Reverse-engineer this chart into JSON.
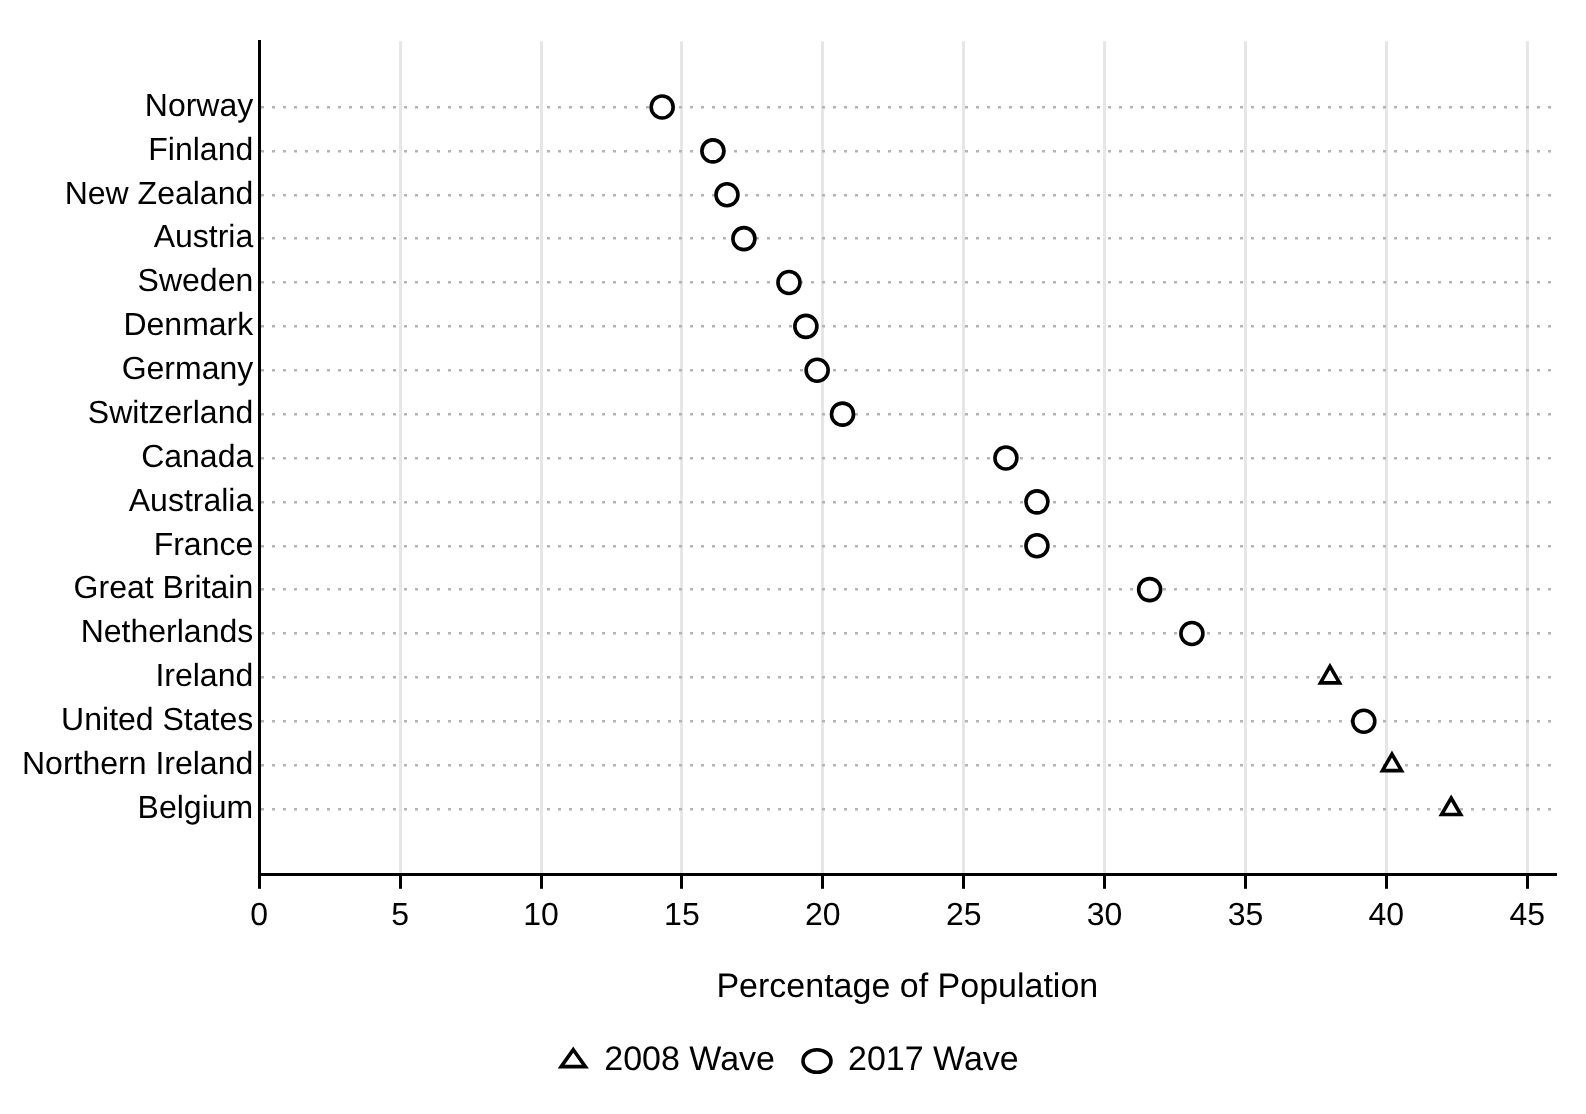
{
  "chart_data": {
    "type": "scatter",
    "orientation": "horizontal",
    "xlabel": "Percentage of Population",
    "categories": [
      "Norway",
      "Finland",
      "New Zealand",
      "Austria",
      "Sweden",
      "Denmark",
      "Germany",
      "Switzerland",
      "Canada",
      "Australia",
      "France",
      "Great Britain",
      "Netherlands",
      "Ireland",
      "United States",
      "Northern Ireland",
      "Belgium"
    ],
    "series": [
      {
        "name": "2008 Wave",
        "color": "#000000",
        "marker": "triangle",
        "values": [
          null,
          null,
          null,
          null,
          null,
          null,
          null,
          null,
          null,
          null,
          null,
          null,
          null,
          38.0,
          null,
          40.2,
          42.3
        ]
      },
      {
        "name": "2017 Wave",
        "color": "#000000",
        "marker": "circle",
        "values": [
          14.3,
          16.1,
          16.6,
          17.2,
          18.8,
          19.4,
          19.8,
          20.7,
          26.5,
          27.6,
          27.6,
          31.6,
          33.1,
          null,
          39.2,
          null,
          null
        ]
      }
    ],
    "xlim": [
      0,
      46
    ],
    "xticks": [
      0,
      5,
      10,
      15,
      20,
      25,
      30,
      35,
      40,
      45
    ],
    "grid": true,
    "legend": "bottom"
  }
}
